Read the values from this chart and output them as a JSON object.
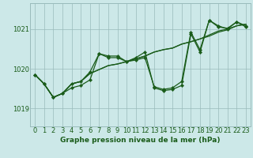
{
  "title": "Graphe pression niveau de la mer (hPa)",
  "bg_color": "#cce8e8",
  "grid_color": "#99bbbb",
  "line_color": "#1a5c1a",
  "x_ticks": [
    0,
    1,
    2,
    3,
    4,
    5,
    6,
    7,
    8,
    9,
    10,
    11,
    12,
    13,
    14,
    15,
    16,
    17,
    18,
    19,
    20,
    21,
    22,
    23
  ],
  "y_ticks": [
    1019,
    1020,
    1021
  ],
  "ylim": [
    1018.55,
    1021.65
  ],
  "xlim": [
    -0.5,
    23.5
  ],
  "series_main": [
    1019.85,
    1019.62,
    1019.28,
    1019.38,
    1019.62,
    1019.68,
    1019.92,
    1020.38,
    1020.32,
    1020.32,
    1020.18,
    1020.22,
    1020.28,
    1019.55,
    1019.48,
    1019.52,
    1019.68,
    1020.92,
    1020.48,
    1021.22,
    1021.08,
    1021.0,
    1021.18,
    1021.08
  ],
  "series_flat": [
    1019.85,
    1019.62,
    1019.28,
    1019.38,
    1019.62,
    1019.68,
    1019.88,
    1019.98,
    1020.08,
    1020.12,
    1020.18,
    1020.25,
    1020.32,
    1020.42,
    1020.48,
    1020.52,
    1020.62,
    1020.68,
    1020.75,
    1020.85,
    1020.95,
    1021.0,
    1021.08,
    1021.12
  ],
  "series_flat2": [
    1019.85,
    1019.62,
    1019.28,
    1019.38,
    1019.62,
    1019.68,
    1019.88,
    1019.98,
    1020.08,
    1020.12,
    1020.18,
    1020.25,
    1020.32,
    1020.42,
    1020.48,
    1020.52,
    1020.62,
    1020.68,
    1020.75,
    1020.82,
    1020.92,
    1020.98,
    1021.08,
    1021.12
  ],
  "series_alt": [
    1019.85,
    1019.62,
    1019.28,
    1019.38,
    1019.52,
    1019.58,
    1019.72,
    1020.38,
    1020.28,
    1020.28,
    1020.18,
    1020.28,
    1020.42,
    1019.52,
    1019.45,
    1019.48,
    1019.58,
    1020.88,
    1020.42,
    1021.22,
    1021.05,
    1021.02,
    1021.18,
    1021.05
  ],
  "tick_fontsize": 6,
  "label_fontsize": 6.5,
  "linewidth": 0.9,
  "markersize": 2.2
}
